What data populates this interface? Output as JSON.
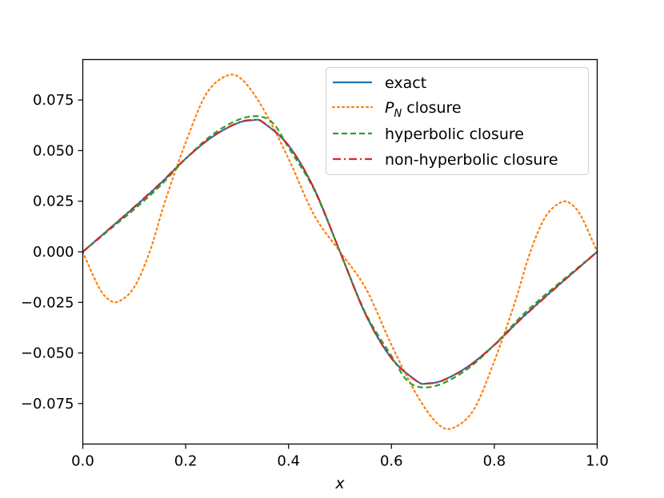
{
  "chart_data": {
    "type": "line",
    "title": "",
    "xlabel": "x",
    "ylabel": "",
    "xlim": [
      0.0,
      1.0
    ],
    "ylim": [
      -0.095,
      0.095
    ],
    "grid": false,
    "legend_position": "top-right",
    "x_ticks": [
      0.0,
      0.2,
      0.4,
      0.6,
      0.8,
      1.0
    ],
    "x_tick_labels": [
      "0.0",
      "0.2",
      "0.4",
      "0.6",
      "0.8",
      "1.0"
    ],
    "y_ticks": [
      0.075,
      0.05,
      0.025,
      0.0,
      -0.025,
      -0.05,
      -0.075
    ],
    "y_tick_labels": [
      "0.075",
      "0.050",
      "0.025",
      "0.000",
      "−0.025",
      "−0.050",
      "−0.075"
    ],
    "legend": {
      "items": [
        {
          "label": "exact",
          "color": "#1f77b4",
          "dash": "solid"
        },
        {
          "label_main": "P",
          "label_sub": "N",
          "label_rest": " closure",
          "color": "#ff7f0e",
          "dash": "dotted"
        },
        {
          "label": "hyperbolic closure",
          "color": "#2ca02c",
          "dash": "dashed"
        },
        {
          "label": "non-hyperbolic closure",
          "color": "#d62728",
          "dash": "dashdot"
        }
      ]
    },
    "series": [
      {
        "name": "exact",
        "color": "#1f77b4",
        "dash": "solid",
        "x": [
          0.0,
          0.05,
          0.1,
          0.15,
          0.2,
          0.25,
          0.3,
          0.33,
          0.35,
          0.4,
          0.45,
          0.5,
          0.55,
          0.6,
          0.65,
          0.67,
          0.7,
          0.75,
          0.8,
          0.85,
          0.9,
          0.95,
          1.0
        ],
        "y": [
          0.0,
          0.011,
          0.022,
          0.0335,
          0.046,
          0.0565,
          0.0635,
          0.065,
          0.064,
          0.0525,
          0.031,
          0.0,
          -0.031,
          -0.0525,
          -0.064,
          -0.065,
          -0.0635,
          -0.0565,
          -0.046,
          -0.0335,
          -0.022,
          -0.011,
          0.0
        ]
      },
      {
        "name": "P_N closure",
        "color": "#ff7f0e",
        "dash": "dotted",
        "x": [
          0.0,
          0.03,
          0.05,
          0.07,
          0.1,
          0.13,
          0.16,
          0.2,
          0.24,
          0.28,
          0.31,
          0.35,
          0.4,
          0.45,
          0.5,
          0.55,
          0.6,
          0.65,
          0.69,
          0.72,
          0.76,
          0.8,
          0.84,
          0.87,
          0.9,
          0.93,
          0.95,
          0.97,
          1.0
        ],
        "y": [
          0.0,
          -0.017,
          -0.0235,
          -0.0245,
          -0.0175,
          0.0,
          0.025,
          0.054,
          0.078,
          0.087,
          0.085,
          0.071,
          0.046,
          0.018,
          0.0,
          -0.018,
          -0.046,
          -0.071,
          -0.085,
          -0.087,
          -0.078,
          -0.054,
          -0.025,
          0.0,
          0.0175,
          0.0245,
          0.0235,
          0.017,
          0.0
        ]
      },
      {
        "name": "hyperbolic closure",
        "color": "#2ca02c",
        "dash": "dashed",
        "x": [
          0.0,
          0.05,
          0.1,
          0.15,
          0.2,
          0.25,
          0.3,
          0.34,
          0.37,
          0.4,
          0.45,
          0.5,
          0.55,
          0.6,
          0.63,
          0.66,
          0.7,
          0.75,
          0.8,
          0.85,
          0.9,
          0.95,
          1.0
        ],
        "y": [
          0.0,
          0.0105,
          0.021,
          0.0325,
          0.046,
          0.0575,
          0.065,
          0.067,
          0.0635,
          0.0515,
          0.0305,
          0.0,
          -0.0305,
          -0.0515,
          -0.0635,
          -0.067,
          -0.065,
          -0.0575,
          -0.046,
          -0.0325,
          -0.021,
          -0.0105,
          0.0
        ]
      },
      {
        "name": "non-hyperbolic closure",
        "color": "#d62728",
        "dash": "dashdot",
        "x": [
          0.0,
          0.05,
          0.1,
          0.15,
          0.2,
          0.25,
          0.3,
          0.33,
          0.35,
          0.4,
          0.45,
          0.5,
          0.55,
          0.6,
          0.65,
          0.67,
          0.7,
          0.75,
          0.8,
          0.85,
          0.9,
          0.95,
          1.0
        ],
        "y": [
          0.0,
          0.011,
          0.0222,
          0.0337,
          0.0461,
          0.0566,
          0.0636,
          0.0651,
          0.0641,
          0.0526,
          0.0311,
          0.0,
          -0.0311,
          -0.0526,
          -0.0641,
          -0.0651,
          -0.0636,
          -0.0566,
          -0.0461,
          -0.0337,
          -0.0222,
          -0.011,
          0.0
        ]
      }
    ]
  }
}
